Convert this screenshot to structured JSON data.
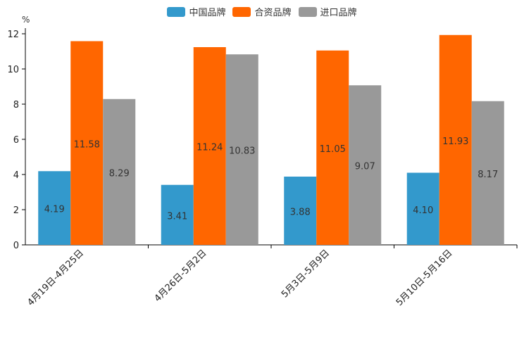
{
  "chart_data": {
    "type": "bar",
    "unit": "%",
    "categories": [
      "4月19日-4月25日",
      "4月26日-5月2日",
      "5月3日-5月9日",
      "5月10日-5月16日"
    ],
    "series": [
      {
        "name": "中国品牌",
        "color": "#3399cc",
        "values": [
          4.19,
          3.41,
          3.88,
          4.1
        ],
        "labels": [
          "4.19",
          "3.41",
          "3.88",
          "4.10"
        ]
      },
      {
        "name": "合资品牌",
        "color": "#ff6600",
        "values": [
          11.58,
          11.24,
          11.05,
          11.93
        ],
        "labels": [
          "11.58",
          "11.24",
          "11.05",
          "11.93"
        ]
      },
      {
        "name": "进口品牌",
        "color": "#999999",
        "values": [
          8.29,
          10.83,
          9.07,
          8.17
        ],
        "labels": [
          "8.29",
          "10.83",
          "9.07",
          "8.17"
        ]
      }
    ],
    "ylim": [
      0,
      12
    ],
    "yticks": [
      "0",
      "2",
      "4",
      "6",
      "8",
      "10",
      "12"
    ],
    "legend_position": "top-center",
    "grid": false
  }
}
